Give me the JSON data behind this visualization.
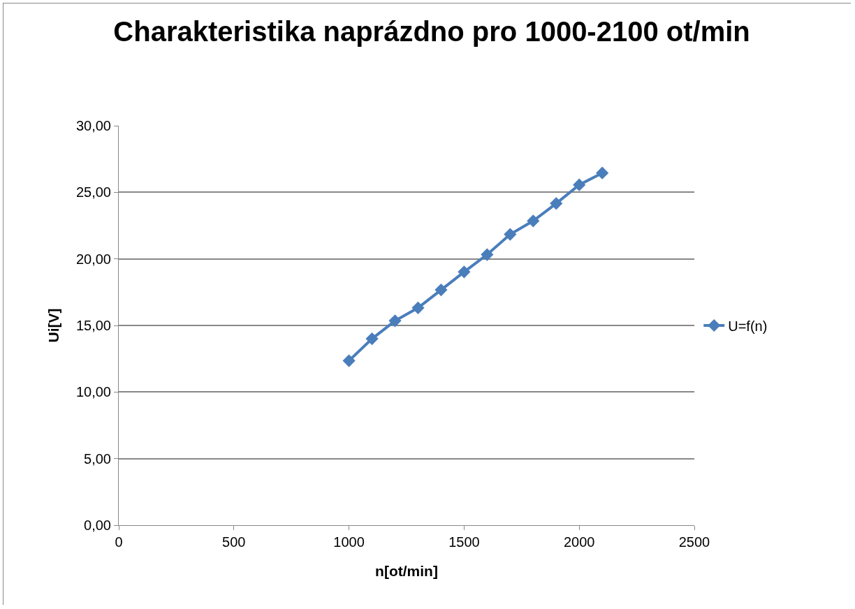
{
  "chart_data": {
    "type": "line",
    "title": "Charakteristika naprázdno pro 1000-2100 ot/min",
    "xlabel": "n[ot/min]",
    "ylabel": "Ui[V]",
    "x": [
      1000,
      1100,
      1200,
      1300,
      1400,
      1500,
      1600,
      1700,
      1800,
      1900,
      2000,
      2100
    ],
    "series": [
      {
        "name": "U=f(n)",
        "color": "#4a7ebb",
        "values": [
          12.35,
          14.0,
          15.35,
          16.32,
          17.67,
          19.02,
          20.32,
          21.84,
          22.85,
          24.16,
          25.56,
          26.45
        ]
      }
    ],
    "xlim": [
      0,
      2500
    ],
    "xticks": [
      0,
      500,
      1000,
      1500,
      2000,
      2500
    ],
    "ylim": [
      0,
      30
    ],
    "yticks": [
      {
        "value": 0,
        "label": "0,00"
      },
      {
        "value": 5,
        "label": "5,00"
      },
      {
        "value": 10,
        "label": "10,00"
      },
      {
        "value": 15,
        "label": "15,00"
      },
      {
        "value": 20,
        "label": "20,00"
      },
      {
        "value": 25,
        "label": "25,00"
      },
      {
        "value": 30,
        "label": "30,00"
      }
    ],
    "grid": "y",
    "legend": "right",
    "marker": "diamond",
    "line_style": "solid"
  }
}
